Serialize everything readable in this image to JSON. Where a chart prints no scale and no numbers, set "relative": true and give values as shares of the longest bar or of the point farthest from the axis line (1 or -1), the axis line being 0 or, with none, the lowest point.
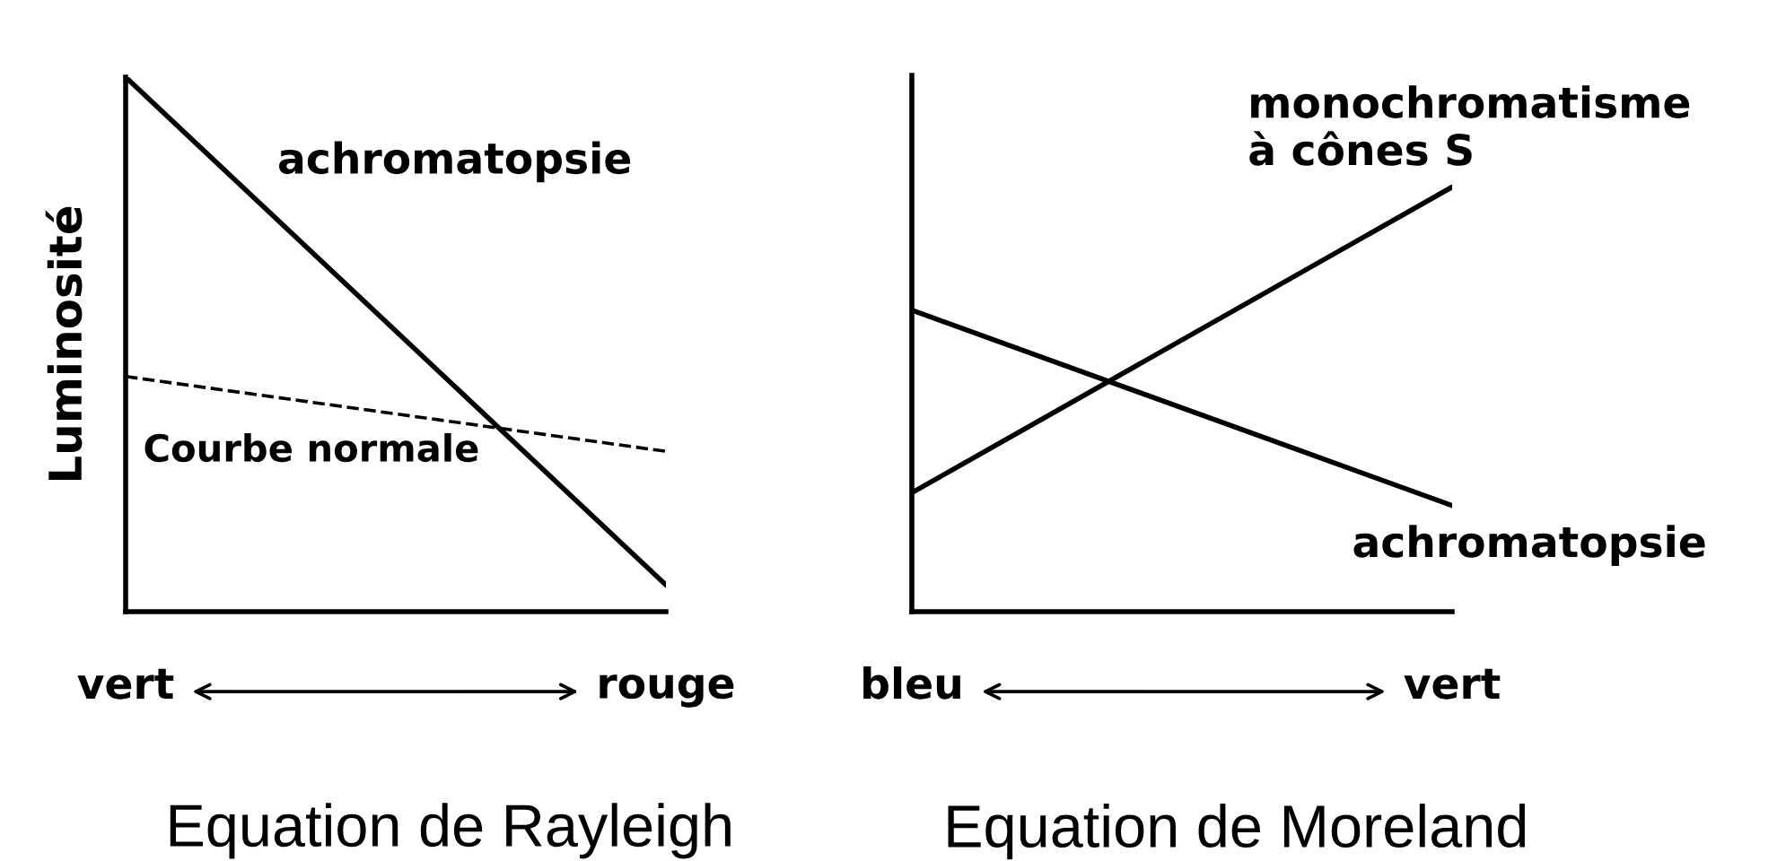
{
  "chart_data": [
    {
      "type": "line",
      "title": "Equation de Rayleigh",
      "ylabel": "Luminosité",
      "categories": [
        "vert",
        "rouge"
      ],
      "relative": true,
      "line_style": "solid",
      "series": [
        {
          "name": "achromatopsie",
          "color": "#000000",
          "values": [
            1,
            0.05
          ]
        },
        {
          "name": "Courbe normale",
          "color": "#000000",
          "values": [
            0.44,
            0.3
          ],
          "line_style": "dashed"
        }
      ]
    },
    {
      "type": "line",
      "title": "Equation de Moreland",
      "categories": [
        "bleu",
        "vert"
      ],
      "relative": true,
      "line_style": "solid",
      "series": [
        {
          "name": "achromatopsie",
          "color": "#000000",
          "values": [
            0.71,
            0.25
          ]
        },
        {
          "name": "monochromatisme\nà cônes S",
          "color": "#000000",
          "values": [
            0.28,
            1
          ]
        }
      ]
    }
  ]
}
